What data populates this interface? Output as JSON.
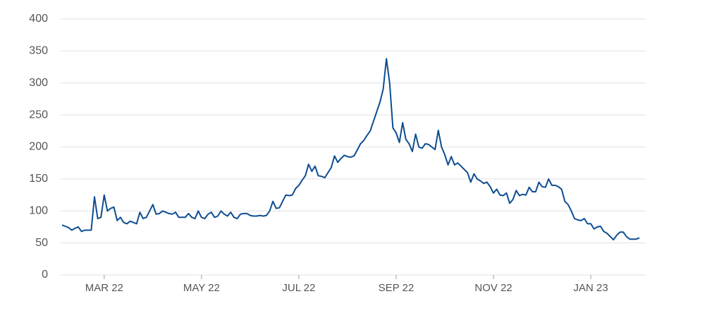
{
  "chart_data": {
    "type": "line",
    "categories": [
      null,
      null,
      null,
      null,
      null,
      null,
      null,
      null,
      null,
      null,
      null,
      null,
      null,
      "MAR 22",
      null,
      null,
      null,
      null,
      null,
      null,
      null,
      null,
      null,
      null,
      null,
      null,
      null,
      null,
      null,
      null,
      null,
      null,
      null,
      null,
      null,
      null,
      null,
      null,
      null,
      null,
      null,
      null,
      null,
      "MAY 22",
      null,
      null,
      null,
      null,
      null,
      null,
      null,
      null,
      null,
      null,
      null,
      null,
      null,
      null,
      null,
      null,
      null,
      null,
      null,
      null,
      null,
      null,
      null,
      null,
      null,
      null,
      null,
      null,
      null,
      "JUL 22",
      null,
      null,
      null,
      null,
      null,
      null,
      null,
      null,
      null,
      null,
      null,
      null,
      null,
      null,
      null,
      null,
      null,
      null,
      null,
      null,
      null,
      null,
      null,
      null,
      null,
      null,
      null,
      null,
      null,
      "SEP 22",
      null,
      null,
      null,
      null,
      null,
      null,
      null,
      null,
      null,
      null,
      null,
      null,
      null,
      null,
      null,
      null,
      null,
      null,
      null,
      null,
      null,
      null,
      null,
      null,
      null,
      null,
      null,
      null,
      null,
      "NOV 22",
      null,
      null,
      null,
      null,
      null,
      null,
      null,
      null,
      null,
      null,
      null,
      null,
      null,
      null,
      null,
      null,
      null,
      null,
      null,
      null,
      null,
      null,
      null,
      null,
      null,
      null,
      null,
      null,
      null,
      "JAN 23",
      null,
      null,
      null,
      null,
      null,
      null,
      null,
      null,
      null,
      null,
      null,
      null,
      null,
      null,
      null
    ],
    "values": [
      78,
      76,
      74,
      70,
      73,
      75,
      68,
      70,
      70,
      70,
      122,
      88,
      90,
      125,
      100,
      104,
      106,
      85,
      90,
      82,
      80,
      84,
      82,
      80,
      98,
      88,
      90,
      100,
      110,
      95,
      96,
      100,
      98,
      96,
      95,
      98,
      90,
      90,
      90,
      96,
      90,
      88,
      100,
      90,
      88,
      95,
      98,
      90,
      92,
      100,
      95,
      92,
      98,
      90,
      88,
      95,
      96,
      96,
      93,
      92,
      92,
      93,
      92,
      93,
      100,
      115,
      104,
      105,
      115,
      125,
      124,
      125,
      135,
      140,
      148,
      155,
      173,
      162,
      170,
      155,
      154,
      152,
      160,
      168,
      186,
      176,
      182,
      187,
      185,
      184,
      186,
      195,
      205,
      210,
      218,
      225,
      240,
      255,
      270,
      290,
      338,
      300,
      230,
      222,
      207,
      238,
      212,
      205,
      193,
      220,
      200,
      198,
      205,
      204,
      200,
      196,
      226,
      200,
      188,
      172,
      185,
      172,
      175,
      170,
      165,
      160,
      145,
      158,
      150,
      147,
      143,
      145,
      138,
      128,
      134,
      125,
      124,
      128,
      112,
      118,
      132,
      124,
      126,
      125,
      137,
      130,
      130,
      145,
      138,
      137,
      150,
      140,
      140,
      138,
      134,
      115,
      110,
      100,
      88,
      86,
      85,
      88,
      80,
      80,
      72,
      75,
      76,
      68,
      65,
      60,
      55,
      62,
      67,
      67,
      60,
      56,
      56,
      56,
      58
    ],
    "color": "#0e4d92",
    "ylim": [
      0,
      400
    ],
    "yticks": [
      0,
      50,
      100,
      150,
      200,
      250,
      300,
      350,
      400
    ],
    "grid": true
  }
}
